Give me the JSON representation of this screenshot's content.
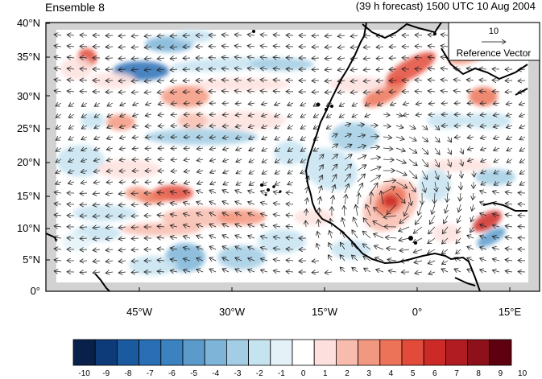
{
  "map": {
    "title_left": "Ensemble 8",
    "title_right": "(39 h forecast) 1500 UTC 10 Aug 2004",
    "lat_labels": [
      "40°N",
      "35°N",
      "30°N",
      "25°N",
      "20°N",
      "15°N",
      "10°N",
      "5°N",
      "0°"
    ],
    "lon_labels": [
      "45°W",
      "30°W",
      "15°W",
      "0°",
      "15°E"
    ],
    "reference_vector": {
      "magnitude": "10",
      "label": "Reference Vector"
    },
    "colorbar": {
      "labels": [
        "-10",
        "-9",
        "-8",
        "-7",
        "-6",
        "-5",
        "-4",
        "-3",
        "-2",
        "-1",
        "0",
        "1",
        "2",
        "3",
        "4",
        "5",
        "6",
        "7",
        "8",
        "9",
        "10"
      ],
      "colors": [
        "#08204a",
        "#0d3b7a",
        "#1a5a9e",
        "#2a6fb5",
        "#3b82c0",
        "#5b9bcb",
        "#7db4d8",
        "#a2cde4",
        "#c6e3f0",
        "#e4f2f8",
        "#ffffff",
        "#ffffff",
        "#fde0dd",
        "#f8bcae",
        "#f39880",
        "#ec7358",
        "#e24a3a",
        "#cc2a27",
        "#b01c21",
        "#8d101a",
        "#5e0010"
      ]
    },
    "colors": {
      "ocean_bg": "#ffffff",
      "land_gray": "#d2d2d2",
      "coast": "#000000",
      "arrow": "#222222"
    }
  }
}
